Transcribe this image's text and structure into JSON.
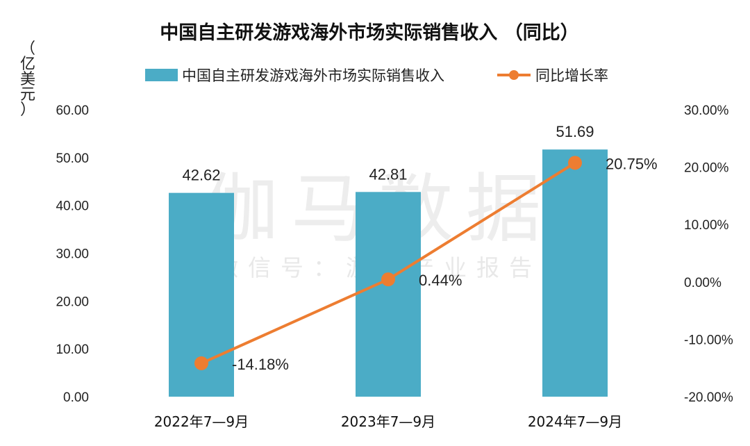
{
  "chart_data": {
    "type": "bar+line",
    "title": "中国自主研发游戏海外市场实际销售收入 （同比）",
    "y_unit_label": [
      "（",
      "亿",
      "美",
      "元",
      "）"
    ],
    "categories": [
      "2022年7—9月",
      "2023年7—9月",
      "2024年7—9月"
    ],
    "series": [
      {
        "name": "中国自主研发游戏海外市场实际销售收入",
        "type": "bar",
        "axis": "left",
        "values": [
          42.62,
          42.81,
          51.69
        ],
        "labels": [
          "42.62",
          "42.81",
          "51.69"
        ]
      },
      {
        "name": "同比增长率",
        "type": "line",
        "axis": "right",
        "values": [
          -14.18,
          0.44,
          20.75
        ],
        "labels": [
          "-14.18%",
          "0.44%",
          "20.75%"
        ]
      }
    ],
    "y_left": {
      "ylim": [
        0,
        60
      ],
      "ticks": [
        "0.00",
        "10.00",
        "20.00",
        "30.00",
        "40.00",
        "50.00",
        "60.00"
      ]
    },
    "y_right": {
      "ylim": [
        -20,
        30
      ],
      "ticks": [
        "-20.00%",
        "-10.00%",
        "0.00%",
        "10.00%",
        "20.00%",
        "30.00%"
      ]
    },
    "legend": "top-center",
    "grid": false,
    "colors": {
      "bar": "#4BACC6",
      "line": "#ED7D31"
    }
  },
  "watermark": {
    "main": "伽马数据",
    "sub": "微信号：游戏产业报告"
  }
}
